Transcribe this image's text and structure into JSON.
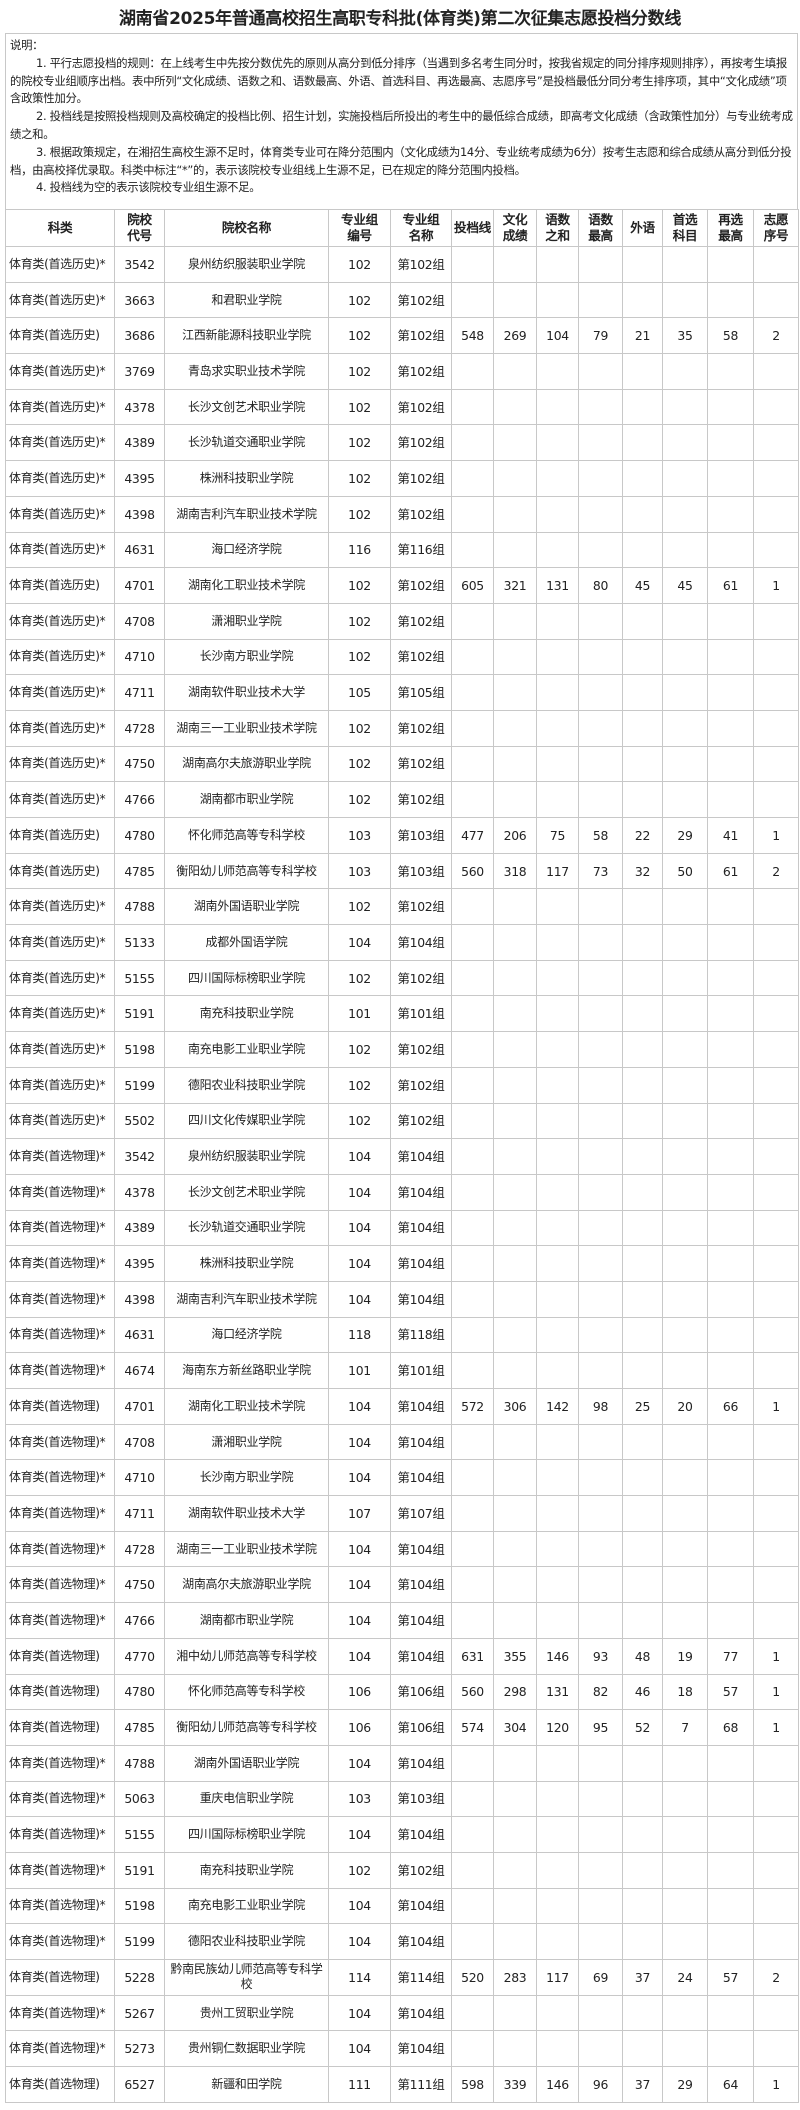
{
  "title": "湖南省2025年普通高校招生高职专科批(体育类)第二次征集志愿投档分数线",
  "notes": {
    "heading": "说明：",
    "items": [
      "1. 平行志愿投档的规则：在上线考生中先按分数优先的原则从高分到低分排序（当遇到多名考生同分时，按我省规定的同分排序规则排序），再按考生填报的院校专业组顺序出档。表中所列“文化成绩、语数之和、语数最高、外语、首选科目、再选最高、志愿序号”是投档最低分同分考生排序项，其中“文化成绩”项含政策性加分。",
      "2. 投档线是按照投档规则及高校确定的投档比例、招生计划，实施投档后所投出的考生中的最低综合成绩，即高考文化成绩（含政策性加分）与专业统考成绩之和。",
      "3. 根据政策规定，在湘招生高校生源不足时，体育类专业可在降分范围内（文化成绩为14分、专业统考成绩为6分）按考生志愿和综合成绩从高分到低分投档，由高校择优录取。科类中标注“*”的，表示该院校专业组线上生源不足，已在规定的降分范围内投档。",
      "4. 投档线为空的表示该院校专业组生源不足。"
    ]
  },
  "table": {
    "headers": [
      "科类",
      "院校代号",
      "院校名称",
      "专业组编号",
      "专业组名称",
      "投档线",
      "文化成绩",
      "语数之和",
      "语数最高",
      "外语",
      "首选科目",
      "再选最高",
      "志愿序号"
    ],
    "rows": [
      [
        "体育类(首选历史)*",
        "3542",
        "泉州纺织服装职业学院",
        "102",
        "第102组",
        "",
        "",
        "",
        "",
        "",
        "",
        "",
        ""
      ],
      [
        "体育类(首选历史)*",
        "3663",
        "和君职业学院",
        "102",
        "第102组",
        "",
        "",
        "",
        "",
        "",
        "",
        "",
        ""
      ],
      [
        "体育类(首选历史)",
        "3686",
        "江西新能源科技职业学院",
        "102",
        "第102组",
        "548",
        "269",
        "104",
        "79",
        "21",
        "35",
        "58",
        "2"
      ],
      [
        "体育类(首选历史)*",
        "3769",
        "青岛求实职业技术学院",
        "102",
        "第102组",
        "",
        "",
        "",
        "",
        "",
        "",
        "",
        ""
      ],
      [
        "体育类(首选历史)*",
        "4378",
        "长沙文创艺术职业学院",
        "102",
        "第102组",
        "",
        "",
        "",
        "",
        "",
        "",
        "",
        ""
      ],
      [
        "体育类(首选历史)*",
        "4389",
        "长沙轨道交通职业学院",
        "102",
        "第102组",
        "",
        "",
        "",
        "",
        "",
        "",
        "",
        ""
      ],
      [
        "体育类(首选历史)*",
        "4395",
        "株洲科技职业学院",
        "102",
        "第102组",
        "",
        "",
        "",
        "",
        "",
        "",
        "",
        ""
      ],
      [
        "体育类(首选历史)*",
        "4398",
        "湖南吉利汽车职业技术学院",
        "102",
        "第102组",
        "",
        "",
        "",
        "",
        "",
        "",
        "",
        ""
      ],
      [
        "体育类(首选历史)*",
        "4631",
        "海口经济学院",
        "116",
        "第116组",
        "",
        "",
        "",
        "",
        "",
        "",
        "",
        ""
      ],
      [
        "体育类(首选历史)",
        "4701",
        "湖南化工职业技术学院",
        "102",
        "第102组",
        "605",
        "321",
        "131",
        "80",
        "45",
        "45",
        "61",
        "1"
      ],
      [
        "体育类(首选历史)*",
        "4708",
        "潇湘职业学院",
        "102",
        "第102组",
        "",
        "",
        "",
        "",
        "",
        "",
        "",
        ""
      ],
      [
        "体育类(首选历史)*",
        "4710",
        "长沙南方职业学院",
        "102",
        "第102组",
        "",
        "",
        "",
        "",
        "",
        "",
        "",
        ""
      ],
      [
        "体育类(首选历史)*",
        "4711",
        "湖南软件职业技术大学",
        "105",
        "第105组",
        "",
        "",
        "",
        "",
        "",
        "",
        "",
        ""
      ],
      [
        "体育类(首选历史)*",
        "4728",
        "湖南三一工业职业技术学院",
        "102",
        "第102组",
        "",
        "",
        "",
        "",
        "",
        "",
        "",
        ""
      ],
      [
        "体育类(首选历史)*",
        "4750",
        "湖南高尔夫旅游职业学院",
        "102",
        "第102组",
        "",
        "",
        "",
        "",
        "",
        "",
        "",
        ""
      ],
      [
        "体育类(首选历史)*",
        "4766",
        "湖南都市职业学院",
        "102",
        "第102组",
        "",
        "",
        "",
        "",
        "",
        "",
        "",
        ""
      ],
      [
        "体育类(首选历史)",
        "4780",
        "怀化师范高等专科学校",
        "103",
        "第103组",
        "477",
        "206",
        "75",
        "58",
        "22",
        "29",
        "41",
        "1"
      ],
      [
        "体育类(首选历史)",
        "4785",
        "衡阳幼儿师范高等专科学校",
        "103",
        "第103组",
        "560",
        "318",
        "117",
        "73",
        "32",
        "50",
        "61",
        "2"
      ],
      [
        "体育类(首选历史)*",
        "4788",
        "湖南外国语职业学院",
        "102",
        "第102组",
        "",
        "",
        "",
        "",
        "",
        "",
        "",
        ""
      ],
      [
        "体育类(首选历史)*",
        "5133",
        "成都外国语学院",
        "104",
        "第104组",
        "",
        "",
        "",
        "",
        "",
        "",
        "",
        ""
      ],
      [
        "体育类(首选历史)*",
        "5155",
        "四川国际标榜职业学院",
        "102",
        "第102组",
        "",
        "",
        "",
        "",
        "",
        "",
        "",
        ""
      ],
      [
        "体育类(首选历史)*",
        "5191",
        "南充科技职业学院",
        "101",
        "第101组",
        "",
        "",
        "",
        "",
        "",
        "",
        "",
        ""
      ],
      [
        "体育类(首选历史)*",
        "5198",
        "南充电影工业职业学院",
        "102",
        "第102组",
        "",
        "",
        "",
        "",
        "",
        "",
        "",
        ""
      ],
      [
        "体育类(首选历史)*",
        "5199",
        "德阳农业科技职业学院",
        "102",
        "第102组",
        "",
        "",
        "",
        "",
        "",
        "",
        "",
        ""
      ],
      [
        "体育类(首选历史)*",
        "5502",
        "四川文化传媒职业学院",
        "102",
        "第102组",
        "",
        "",
        "",
        "",
        "",
        "",
        "",
        ""
      ],
      [
        "体育类(首选物理)*",
        "3542",
        "泉州纺织服装职业学院",
        "104",
        "第104组",
        "",
        "",
        "",
        "",
        "",
        "",
        "",
        ""
      ],
      [
        "体育类(首选物理)*",
        "4378",
        "长沙文创艺术职业学院",
        "104",
        "第104组",
        "",
        "",
        "",
        "",
        "",
        "",
        "",
        ""
      ],
      [
        "体育类(首选物理)*",
        "4389",
        "长沙轨道交通职业学院",
        "104",
        "第104组",
        "",
        "",
        "",
        "",
        "",
        "",
        "",
        ""
      ],
      [
        "体育类(首选物理)*",
        "4395",
        "株洲科技职业学院",
        "104",
        "第104组",
        "",
        "",
        "",
        "",
        "",
        "",
        "",
        ""
      ],
      [
        "体育类(首选物理)*",
        "4398",
        "湖南吉利汽车职业技术学院",
        "104",
        "第104组",
        "",
        "",
        "",
        "",
        "",
        "",
        "",
        ""
      ],
      [
        "体育类(首选物理)*",
        "4631",
        "海口经济学院",
        "118",
        "第118组",
        "",
        "",
        "",
        "",
        "",
        "",
        "",
        ""
      ],
      [
        "体育类(首选物理)*",
        "4674",
        "海南东方新丝路职业学院",
        "101",
        "第101组",
        "",
        "",
        "",
        "",
        "",
        "",
        "",
        ""
      ],
      [
        "体育类(首选物理)",
        "4701",
        "湖南化工职业技术学院",
        "104",
        "第104组",
        "572",
        "306",
        "142",
        "98",
        "25",
        "20",
        "66",
        "1"
      ],
      [
        "体育类(首选物理)*",
        "4708",
        "潇湘职业学院",
        "104",
        "第104组",
        "",
        "",
        "",
        "",
        "",
        "",
        "",
        ""
      ],
      [
        "体育类(首选物理)*",
        "4710",
        "长沙南方职业学院",
        "104",
        "第104组",
        "",
        "",
        "",
        "",
        "",
        "",
        "",
        ""
      ],
      [
        "体育类(首选物理)*",
        "4711",
        "湖南软件职业技术大学",
        "107",
        "第107组",
        "",
        "",
        "",
        "",
        "",
        "",
        "",
        ""
      ],
      [
        "体育类(首选物理)*",
        "4728",
        "湖南三一工业职业技术学院",
        "104",
        "第104组",
        "",
        "",
        "",
        "",
        "",
        "",
        "",
        ""
      ],
      [
        "体育类(首选物理)*",
        "4750",
        "湖南高尔夫旅游职业学院",
        "104",
        "第104组",
        "",
        "",
        "",
        "",
        "",
        "",
        "",
        ""
      ],
      [
        "体育类(首选物理)*",
        "4766",
        "湖南都市职业学院",
        "104",
        "第104组",
        "",
        "",
        "",
        "",
        "",
        "",
        "",
        ""
      ],
      [
        "体育类(首选物理)",
        "4770",
        "湘中幼儿师范高等专科学校",
        "104",
        "第104组",
        "631",
        "355",
        "146",
        "93",
        "48",
        "19",
        "77",
        "1"
      ],
      [
        "体育类(首选物理)",
        "4780",
        "怀化师范高等专科学校",
        "106",
        "第106组",
        "560",
        "298",
        "131",
        "82",
        "46",
        "18",
        "57",
        "1"
      ],
      [
        "体育类(首选物理)",
        "4785",
        "衡阳幼儿师范高等专科学校",
        "106",
        "第106组",
        "574",
        "304",
        "120",
        "95",
        "52",
        "7",
        "68",
        "1"
      ],
      [
        "体育类(首选物理)*",
        "4788",
        "湖南外国语职业学院",
        "104",
        "第104组",
        "",
        "",
        "",
        "",
        "",
        "",
        "",
        ""
      ],
      [
        "体育类(首选物理)*",
        "5063",
        "重庆电信职业学院",
        "103",
        "第103组",
        "",
        "",
        "",
        "",
        "",
        "",
        "",
        ""
      ],
      [
        "体育类(首选物理)*",
        "5155",
        "四川国际标榜职业学院",
        "104",
        "第104组",
        "",
        "",
        "",
        "",
        "",
        "",
        "",
        ""
      ],
      [
        "体育类(首选物理)*",
        "5191",
        "南充科技职业学院",
        "102",
        "第102组",
        "",
        "",
        "",
        "",
        "",
        "",
        "",
        ""
      ],
      [
        "体育类(首选物理)*",
        "5198",
        "南充电影工业职业学院",
        "104",
        "第104组",
        "",
        "",
        "",
        "",
        "",
        "",
        "",
        ""
      ],
      [
        "体育类(首选物理)*",
        "5199",
        "德阳农业科技职业学院",
        "104",
        "第104组",
        "",
        "",
        "",
        "",
        "",
        "",
        "",
        ""
      ],
      [
        "体育类(首选物理)",
        "5228",
        "黔南民族幼儿师范高等专科学校",
        "114",
        "第114组",
        "520",
        "283",
        "117",
        "69",
        "37",
        "24",
        "57",
        "2"
      ],
      [
        "体育类(首选物理)*",
        "5267",
        "贵州工贸职业学院",
        "104",
        "第104组",
        "",
        "",
        "",
        "",
        "",
        "",
        "",
        ""
      ],
      [
        "体育类(首选物理)*",
        "5273",
        "贵州铜仁数据职业学院",
        "104",
        "第104组",
        "",
        "",
        "",
        "",
        "",
        "",
        "",
        ""
      ],
      [
        "体育类(首选物理)",
        "6527",
        "新疆和田学院",
        "111",
        "第111组",
        "598",
        "339",
        "146",
        "96",
        "37",
        "29",
        "64",
        "1"
      ]
    ]
  }
}
